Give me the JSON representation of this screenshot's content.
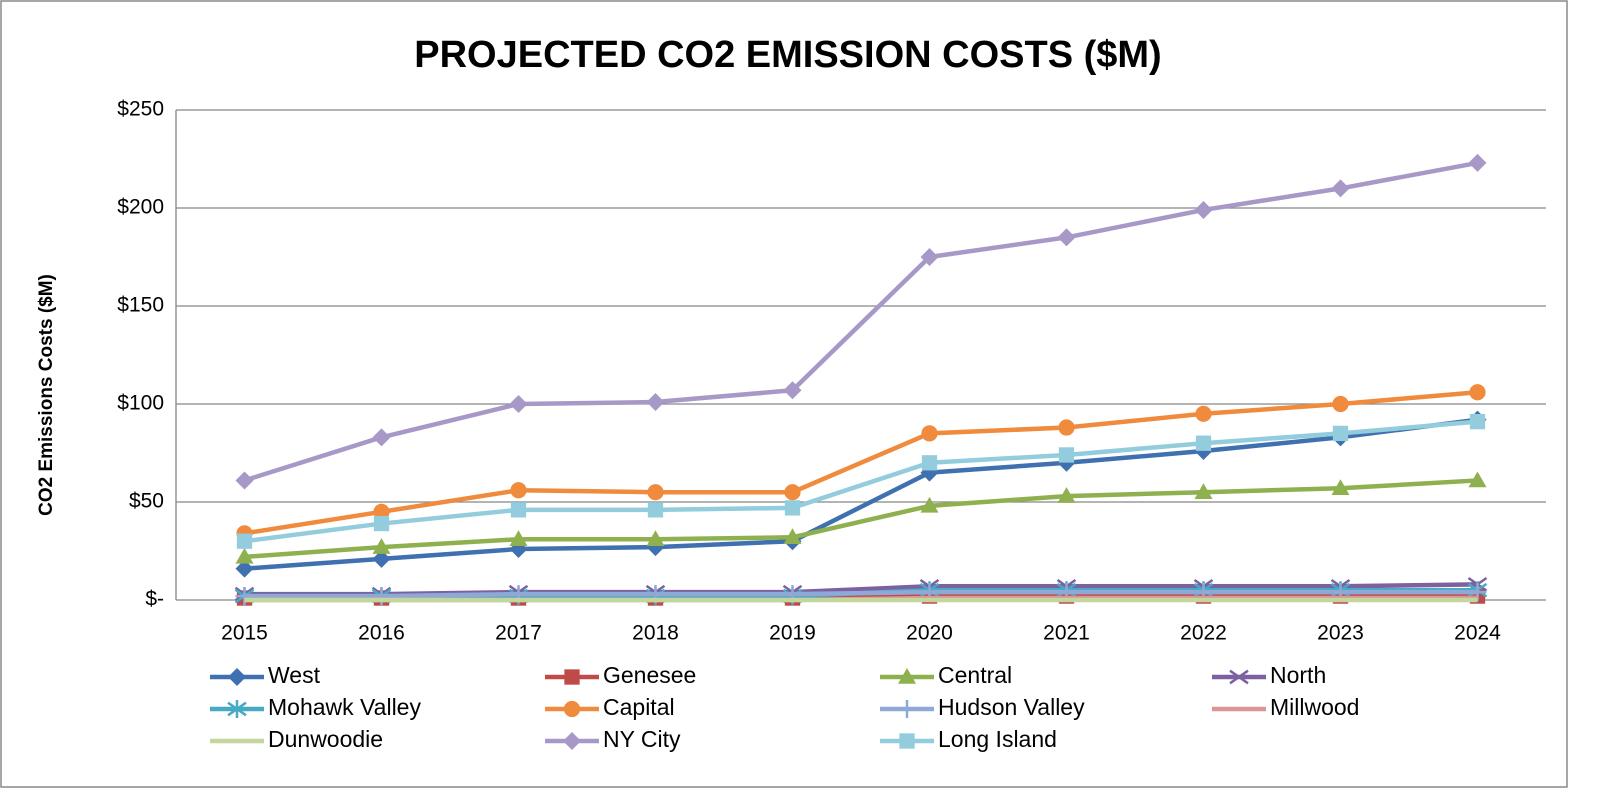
{
  "chart_data": {
    "type": "line",
    "title": "PROJECTED CO2 EMISSION COSTS ($M)",
    "y_label": "CO2 Emissions  Costs ($M)",
    "categories": [
      "2015",
      "2016",
      "2017",
      "2018",
      "2019",
      "2020",
      "2021",
      "2022",
      "2023",
      "2024"
    ],
    "ylim": [
      0,
      250
    ],
    "yticks": [
      {
        "value": 0,
        "label": "$-"
      },
      {
        "value": 50,
        "label": "$50"
      },
      {
        "value": 100,
        "label": "$100"
      },
      {
        "value": 150,
        "label": "$150"
      },
      {
        "value": 200,
        "label": "$200"
      },
      {
        "value": 250,
        "label": "$250"
      }
    ],
    "grid": true,
    "legend": "bottom",
    "series": [
      {
        "name": "West",
        "color": "#3f70b0",
        "marker": "diamond",
        "values": [
          16,
          21,
          26,
          27,
          30,
          65,
          70,
          76,
          83,
          92
        ]
      },
      {
        "name": "Genesee",
        "color": "#be4b48",
        "marker": "square",
        "values": [
          1,
          1,
          1,
          1,
          1,
          2,
          2,
          2,
          2,
          2
        ]
      },
      {
        "name": "Central",
        "color": "#8fb04f",
        "marker": "triangle",
        "values": [
          22,
          27,
          31,
          31,
          32,
          48,
          53,
          55,
          57,
          61
        ]
      },
      {
        "name": "North",
        "color": "#7d60a0",
        "marker": "x",
        "values": [
          3,
          3,
          4,
          4,
          4,
          7,
          7,
          7,
          7,
          8
        ]
      },
      {
        "name": "Mohawk Valley",
        "color": "#46aac5",
        "marker": "asterisk",
        "values": [
          2,
          2,
          2,
          2,
          2,
          5,
          5,
          5,
          5,
          5
        ]
      },
      {
        "name": "Capital",
        "color": "#f08a3c",
        "marker": "circle",
        "values": [
          34,
          45,
          56,
          55,
          55,
          85,
          88,
          95,
          100,
          106
        ]
      },
      {
        "name": "Hudson Valley",
        "color": "#8ea9d8",
        "marker": "plus",
        "values": [
          2,
          2,
          3,
          3,
          3,
          4,
          4,
          4,
          4,
          4
        ]
      },
      {
        "name": "Millwood",
        "color": "#d99694",
        "marker": "none",
        "values": [
          0,
          0,
          0,
          0,
          0,
          1,
          1,
          1,
          1,
          1
        ]
      },
      {
        "name": "Dunwoodie",
        "color": "#c3d69b",
        "marker": "none",
        "values": [
          0,
          0,
          0,
          0,
          0,
          0,
          0,
          0,
          0,
          0
        ]
      },
      {
        "name": "NY City",
        "color": "#a898c8",
        "marker": "diamond",
        "values": [
          61,
          83,
          100,
          101,
          107,
          175,
          185,
          199,
          210,
          223
        ]
      },
      {
        "name": "Long Island",
        "color": "#93cddd",
        "marker": "square",
        "values": [
          30,
          39,
          46,
          46,
          47,
          70,
          74,
          80,
          85,
          91
        ]
      }
    ]
  }
}
